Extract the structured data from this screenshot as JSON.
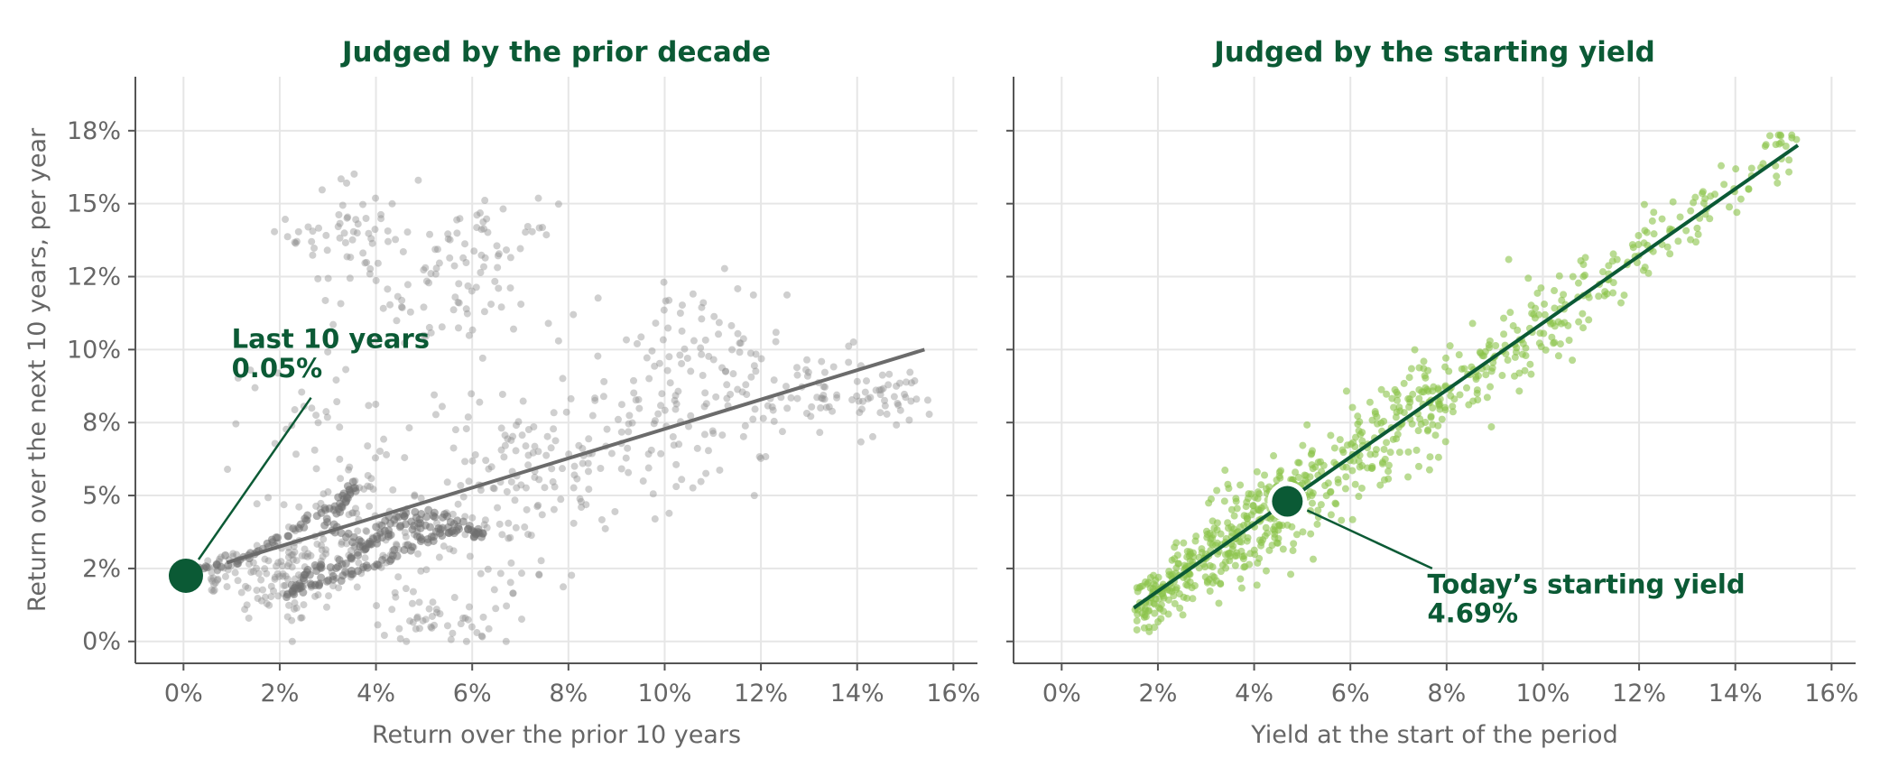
{
  "colors": {
    "accent": "#0b5a35",
    "grey_points": "#8c8c8c",
    "grey_line": "#6b6b6b",
    "green_points": "#8bc34a",
    "grid": "#e6e6e6",
    "axis": "#555555",
    "text": "#666666"
  },
  "chart_data": [
    {
      "type": "scatter",
      "title": "Judged by the prior decade",
      "xlabel": "Return over the prior 10 years",
      "ylabel": "Return over the next 10 years, per year",
      "xlim": [
        -0.01,
        0.165
      ],
      "ylim": [
        -0.0075,
        0.1935
      ],
      "x_ticks": [
        0,
        0.02,
        0.04,
        0.06,
        0.08,
        0.1,
        0.12,
        0.14,
        0.16
      ],
      "x_tick_labels": [
        "0%",
        "2%",
        "4%",
        "6%",
        "8%",
        "10%",
        "12%",
        "14%",
        "16%"
      ],
      "y_ticks": [
        0,
        0.025,
        0.05,
        0.075,
        0.1,
        0.125,
        0.15,
        0.175
      ],
      "y_tick_labels": [
        "0%",
        "2%",
        "5%",
        "8%",
        "10%",
        "12%",
        "15%",
        "18%"
      ],
      "grid": true,
      "fit_line": {
        "x": [
          0.009,
          0.154
        ],
        "y": [
          0.027,
          0.1
        ]
      },
      "highlight": {
        "x": 0.0005,
        "y": 0.0225
      },
      "annotation": {
        "lines": [
          "Last 10 years",
          "0.05%"
        ]
      },
      "clusters": [
        {
          "x": 0.005,
          "y": 0.024,
          "sx": 0.004,
          "sy": 0.004,
          "n": 60
        },
        {
          "x": 0.02,
          "y": 0.022,
          "sx": 0.006,
          "sy": 0.008,
          "n": 90
        },
        {
          "x": 0.035,
          "y": 0.035,
          "sx": 0.008,
          "sy": 0.012,
          "n": 110
        },
        {
          "x": 0.034,
          "y": 0.14,
          "sx": 0.006,
          "sy": 0.01,
          "n": 55
        },
        {
          "x": 0.053,
          "y": 0.008,
          "sx": 0.006,
          "sy": 0.005,
          "n": 45
        },
        {
          "x": 0.05,
          "y": 0.12,
          "sx": 0.01,
          "sy": 0.015,
          "n": 60
        },
        {
          "x": 0.065,
          "y": 0.13,
          "sx": 0.006,
          "sy": 0.01,
          "n": 45
        },
        {
          "x": 0.067,
          "y": 0.045,
          "sx": 0.008,
          "sy": 0.02,
          "n": 80
        },
        {
          "x": 0.085,
          "y": 0.065,
          "sx": 0.012,
          "sy": 0.012,
          "n": 110
        },
        {
          "x": 0.105,
          "y": 0.095,
          "sx": 0.01,
          "sy": 0.015,
          "n": 80
        },
        {
          "x": 0.128,
          "y": 0.083,
          "sx": 0.012,
          "sy": 0.008,
          "n": 80
        },
        {
          "x": 0.145,
          "y": 0.085,
          "sx": 0.006,
          "sy": 0.006,
          "n": 30
        },
        {
          "x": 0.03,
          "y": 0.075,
          "sx": 0.01,
          "sy": 0.015,
          "n": 40
        }
      ],
      "dense_path": [
        [
          0.002,
          0.025
        ],
        [
          0.012,
          0.028
        ],
        [
          0.02,
          0.035
        ],
        [
          0.03,
          0.045
        ],
        [
          0.036,
          0.054
        ],
        [
          0.03,
          0.04
        ],
        [
          0.038,
          0.032
        ],
        [
          0.046,
          0.04
        ],
        [
          0.056,
          0.038
        ],
        [
          0.05,
          0.035
        ],
        [
          0.04,
          0.026
        ],
        [
          0.03,
          0.021
        ],
        [
          0.022,
          0.016
        ],
        [
          0.026,
          0.024
        ],
        [
          0.035,
          0.028
        ],
        [
          0.043,
          0.042
        ],
        [
          0.052,
          0.044
        ],
        [
          0.06,
          0.038
        ],
        [
          0.062,
          0.036
        ]
      ]
    },
    {
      "type": "scatter",
      "title": "Judged by the starting yield",
      "xlabel": "Yield at the start of the period",
      "ylabel": "",
      "xlim": [
        -0.01,
        0.165
      ],
      "ylim": [
        -0.0075,
        0.1935
      ],
      "x_ticks": [
        0,
        0.02,
        0.04,
        0.06,
        0.08,
        0.1,
        0.12,
        0.14,
        0.16
      ],
      "x_tick_labels": [
        "0%",
        "2%",
        "4%",
        "6%",
        "8%",
        "10%",
        "12%",
        "14%",
        "16%"
      ],
      "y_ticks": [
        0,
        0.025,
        0.05,
        0.075,
        0.1,
        0.125,
        0.15,
        0.175
      ],
      "grid": true,
      "fit_line": {
        "x": [
          0.015,
          0.153
        ],
        "y": [
          0.0115,
          0.17
        ]
      },
      "highlight": {
        "x": 0.0469,
        "y": 0.048
      },
      "annotation": {
        "lines": [
          "Today’s starting yield",
          "4.69%"
        ]
      },
      "trend": {
        "slope": 1.15,
        "intercept": -0.006
      },
      "bands": [
        {
          "x0": 0.015,
          "x1": 0.03,
          "sd": 0.005,
          "n": 140
        },
        {
          "x0": 0.03,
          "x1": 0.05,
          "sd": 0.008,
          "n": 220
        },
        {
          "x0": 0.05,
          "x1": 0.08,
          "sd": 0.009,
          "n": 200
        },
        {
          "x0": 0.08,
          "x1": 0.11,
          "sd": 0.008,
          "n": 130
        },
        {
          "x0": 0.11,
          "x1": 0.155,
          "sd": 0.006,
          "n": 100
        }
      ]
    }
  ]
}
